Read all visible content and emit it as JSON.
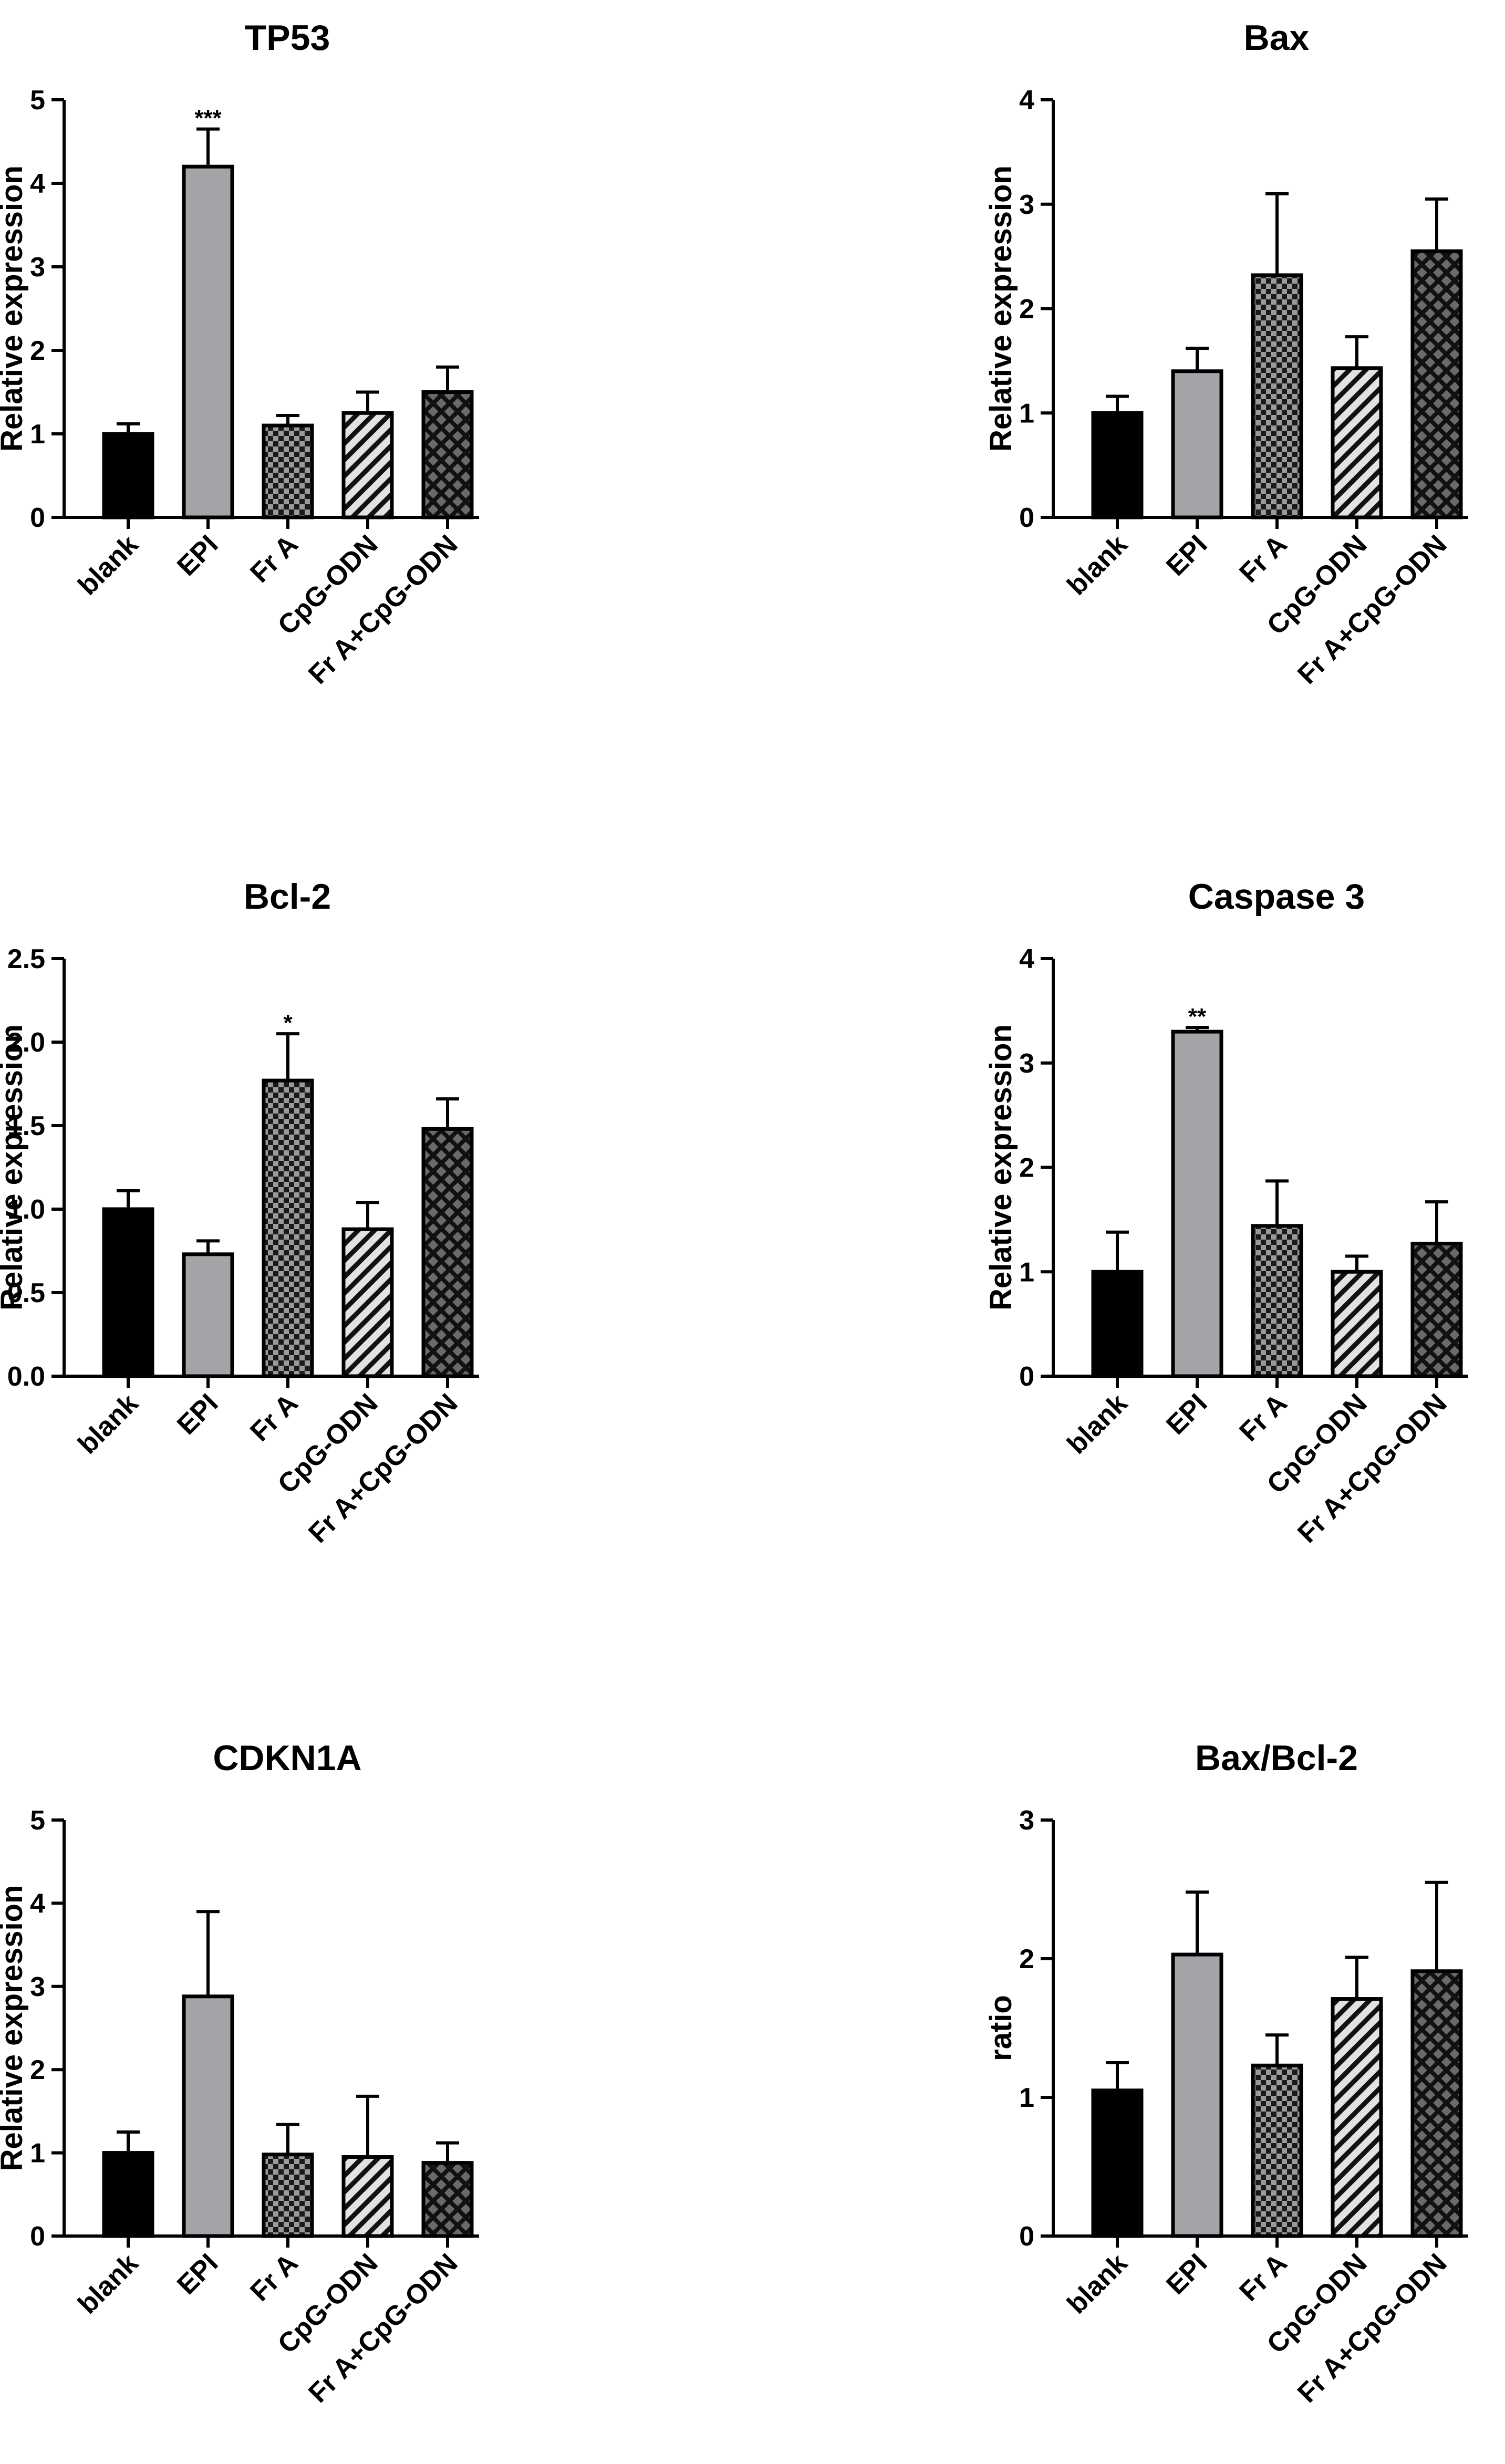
{
  "chart_data": [
    {
      "type": "bar",
      "title": "TP53",
      "ylabel": "Relative expression",
      "ylim": [
        0,
        5
      ],
      "yticks": [
        "0",
        "1",
        "2",
        "3",
        "4",
        "5"
      ],
      "categories": [
        "blank",
        "EPI",
        "Fr A",
        "CpG-ODN",
        "Fr A+CpG-ODN"
      ],
      "values": [
        1.0,
        4.2,
        1.1,
        1.25,
        1.5
      ],
      "errors": [
        0.12,
        0.45,
        0.12,
        0.25,
        0.3
      ],
      "annotations": [
        "",
        "***",
        "",
        "",
        ""
      ]
    },
    {
      "type": "bar",
      "title": "Bax",
      "ylabel": "Relative expression",
      "ylim": [
        0,
        4
      ],
      "yticks": [
        "0",
        "1",
        "2",
        "3",
        "4"
      ],
      "categories": [
        "blank",
        "EPI",
        "Fr A",
        "CpG-ODN",
        "Fr A+CpG-ODN"
      ],
      "values": [
        1.0,
        1.4,
        2.32,
        1.43,
        2.55
      ],
      "errors": [
        0.16,
        0.22,
        0.78,
        0.3,
        0.5
      ],
      "annotations": [
        "",
        "",
        "",
        "",
        ""
      ]
    },
    {
      "type": "bar",
      "title": "Bcl-2",
      "ylabel": "Relative expression",
      "ylim": [
        0,
        2.5
      ],
      "yticks": [
        "0.0",
        "0.5",
        "1.0",
        "1.5",
        "2.0",
        "2.5"
      ],
      "categories": [
        "blank",
        "EPI",
        "Fr A",
        "CpG-ODN",
        "Fr A+CpG-ODN"
      ],
      "values": [
        1.0,
        0.73,
        1.77,
        0.88,
        1.48
      ],
      "errors": [
        0.11,
        0.08,
        0.28,
        0.16,
        0.18
      ],
      "annotations": [
        "",
        "",
        "*",
        "",
        ""
      ]
    },
    {
      "type": "bar",
      "title": "Caspase 3",
      "ylabel": "Relative expression",
      "ylim": [
        0,
        4
      ],
      "yticks": [
        "0",
        "1",
        "2",
        "3",
        "4"
      ],
      "categories": [
        "blank",
        "EPI",
        "Fr A",
        "CpG-ODN",
        "Fr A+CpG-ODN"
      ],
      "values": [
        1.0,
        3.3,
        1.44,
        1.0,
        1.27
      ],
      "errors": [
        0.38,
        0.04,
        0.43,
        0.15,
        0.4
      ],
      "annotations": [
        "",
        "**",
        "",
        "",
        ""
      ]
    },
    {
      "type": "bar",
      "title": "CDKN1A",
      "ylabel": "Relative expression",
      "ylim": [
        0,
        5
      ],
      "yticks": [
        "0",
        "1",
        "2",
        "3",
        "4",
        "5"
      ],
      "categories": [
        "blank",
        "EPI",
        "Fr A",
        "CpG-ODN",
        "Fr A+CpG-ODN"
      ],
      "values": [
        1.0,
        2.88,
        0.98,
        0.95,
        0.88
      ],
      "errors": [
        0.25,
        1.02,
        0.36,
        0.73,
        0.24
      ],
      "annotations": [
        "",
        "",
        "",
        "",
        ""
      ]
    },
    {
      "type": "bar",
      "title": "Bax/Bcl-2",
      "ylabel": "ratio",
      "ylim": [
        0,
        3
      ],
      "yticks": [
        "0",
        "1",
        "2",
        "3"
      ],
      "categories": [
        "blank",
        "EPI",
        "Fr A",
        "CpG-ODN",
        "Fr A+CpG-ODN"
      ],
      "values": [
        1.05,
        2.03,
        1.23,
        1.71,
        1.91
      ],
      "errors": [
        0.2,
        0.45,
        0.22,
        0.3,
        0.64
      ],
      "annotations": [
        "",
        "",
        "",
        "",
        ""
      ]
    }
  ],
  "bar_styles": [
    {
      "fill": "#000000",
      "pattern": "solid"
    },
    {
      "fill": "#a3a3a8",
      "pattern": "solid"
    },
    {
      "fill": "#9a9a9a",
      "pattern": "checker"
    },
    {
      "fill": "#e2e2e2",
      "pattern": "diagonal"
    },
    {
      "fill": "#4a4a4a",
      "pattern": "crosshatch"
    }
  ]
}
